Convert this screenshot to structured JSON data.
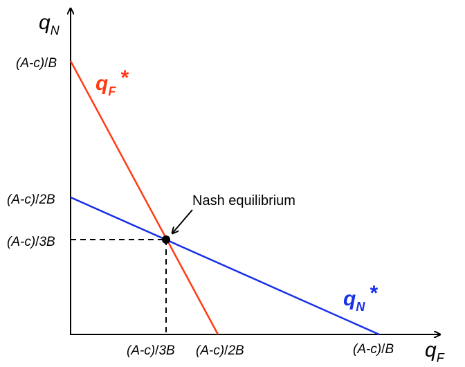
{
  "axes": {
    "y_label_main": "q",
    "y_label_sub": "N",
    "x_label_main": "q",
    "x_label_sub": "F"
  },
  "ticks": {
    "y_top": {
      "paren": "(A-c)",
      "slash": "/",
      "den": "B"
    },
    "y_mid": {
      "paren": "(A-c)",
      "slash": "/",
      "den": "2B"
    },
    "y_low": {
      "paren": "(A-c)",
      "slash": "/",
      "den": "3B"
    },
    "x_left": {
      "paren": "(A-c)",
      "slash": "/",
      "den": "3B"
    },
    "x_mid": {
      "paren": "(A-c)",
      "slash": "/",
      "den": "2B"
    },
    "x_right": {
      "paren": "(A-c)",
      "slash": "/",
      "den": "B"
    }
  },
  "curves": {
    "qF": {
      "main": "q",
      "sub": "F",
      "star": "*",
      "color": "#ff3b14"
    },
    "qN": {
      "main": "q",
      "sub": "N",
      "star": "*",
      "color": "#1730e6"
    }
  },
  "annotation": {
    "text": "Nash equilibrium"
  },
  "colors": {
    "axis": "#000000",
    "dashed": "#000000",
    "point": "#000000"
  }
}
